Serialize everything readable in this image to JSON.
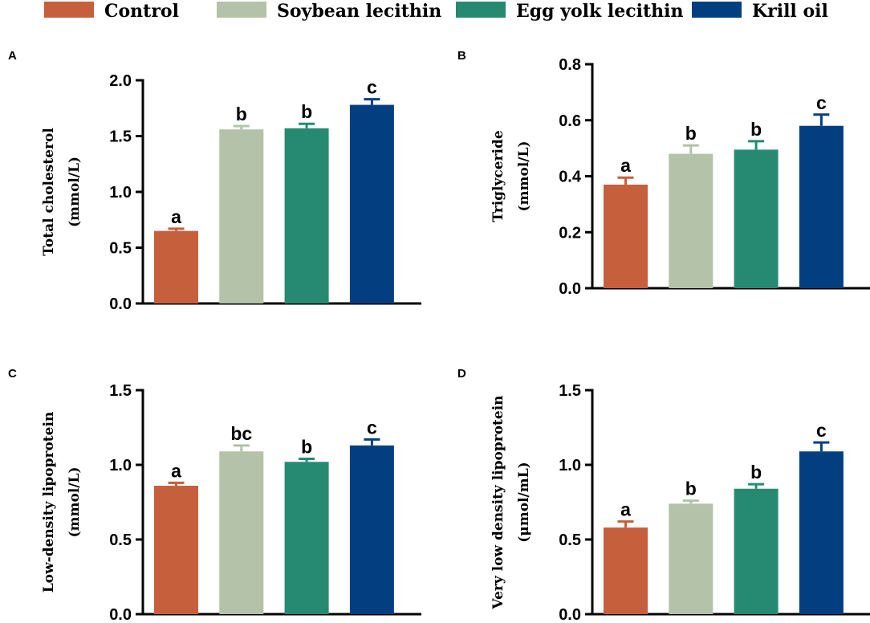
{
  "colors": {
    "Control": "#c65f3c",
    "Soybean lecithin": "#b3c2a8",
    "Egg yolk lecithin": "#268a72",
    "Krill oil": "#033f80"
  },
  "legend": {
    "items": [
      "Control",
      "Soybean lecithin",
      "Egg yolk lecithin",
      "Krill oil"
    ]
  },
  "chart_data": [
    {
      "panel": "A",
      "type": "bar",
      "title": "",
      "ylabel_lines": [
        "Total cholesterol",
        "(mmol/L)"
      ],
      "categories": [
        "Control",
        "Soybean lecithin",
        "Egg yolk lecithin",
        "Krill oil"
      ],
      "values": [
        0.65,
        1.56,
        1.57,
        1.78
      ],
      "errors": [
        0.02,
        0.03,
        0.04,
        0.05
      ],
      "labels": [
        "a",
        "b",
        "b",
        "c"
      ],
      "ylim": [
        0,
        2.0
      ],
      "yticks": [
        0.0,
        0.5,
        1.0,
        1.5,
        2.0
      ],
      "ytick_labels": [
        "0.0",
        "0.5",
        "1.0",
        "1.5",
        "2.0"
      ]
    },
    {
      "panel": "B",
      "type": "bar",
      "title": "",
      "ylabel_lines": [
        "Triglyceride",
        "(mmol/L)"
      ],
      "categories": [
        "Control",
        "Soybean lecithin",
        "Egg yolk lecithin",
        "Krill oil"
      ],
      "values": [
        0.37,
        0.48,
        0.495,
        0.58
      ],
      "errors": [
        0.025,
        0.03,
        0.03,
        0.04
      ],
      "labels": [
        "a",
        "b",
        "b",
        "c"
      ],
      "ylim": [
        0,
        0.8
      ],
      "yticks": [
        0.0,
        0.2,
        0.4,
        0.6,
        0.8
      ],
      "ytick_labels": [
        "0.0",
        "0.2",
        "0.4",
        "0.6",
        "0.8"
      ]
    },
    {
      "panel": "C",
      "type": "bar",
      "title": "",
      "ylabel_lines": [
        "Low-density lipoprotein",
        "(mmol/L)"
      ],
      "categories": [
        "Control",
        "Soybean lecithin",
        "Egg yolk lecithin",
        "Krill oil"
      ],
      "values": [
        0.86,
        1.09,
        1.02,
        1.13
      ],
      "errors": [
        0.02,
        0.04,
        0.02,
        0.04
      ],
      "labels": [
        "a",
        "bc",
        "b",
        "c"
      ],
      "ylim": [
        0,
        1.5
      ],
      "yticks": [
        0.0,
        0.5,
        1.0,
        1.5
      ],
      "ytick_labels": [
        "0.0",
        "0.5",
        "1.0",
        "1.5"
      ]
    },
    {
      "panel": "D",
      "type": "bar",
      "title": "",
      "ylabel_lines": [
        "Very low density lipoprotein",
        "(μmol/mL)"
      ],
      "categories": [
        "Control",
        "Soybean lecithin",
        "Egg yolk lecithin",
        "Krill oil"
      ],
      "values": [
        0.58,
        0.74,
        0.84,
        1.09
      ],
      "errors": [
        0.04,
        0.02,
        0.03,
        0.06
      ],
      "labels": [
        "a",
        "b",
        "b",
        "c"
      ],
      "ylim": [
        0,
        1.5
      ],
      "yticks": [
        0.0,
        0.5,
        1.0,
        1.5
      ],
      "ytick_labels": [
        "0.0",
        "0.5",
        "1.0",
        "1.5"
      ]
    }
  ]
}
